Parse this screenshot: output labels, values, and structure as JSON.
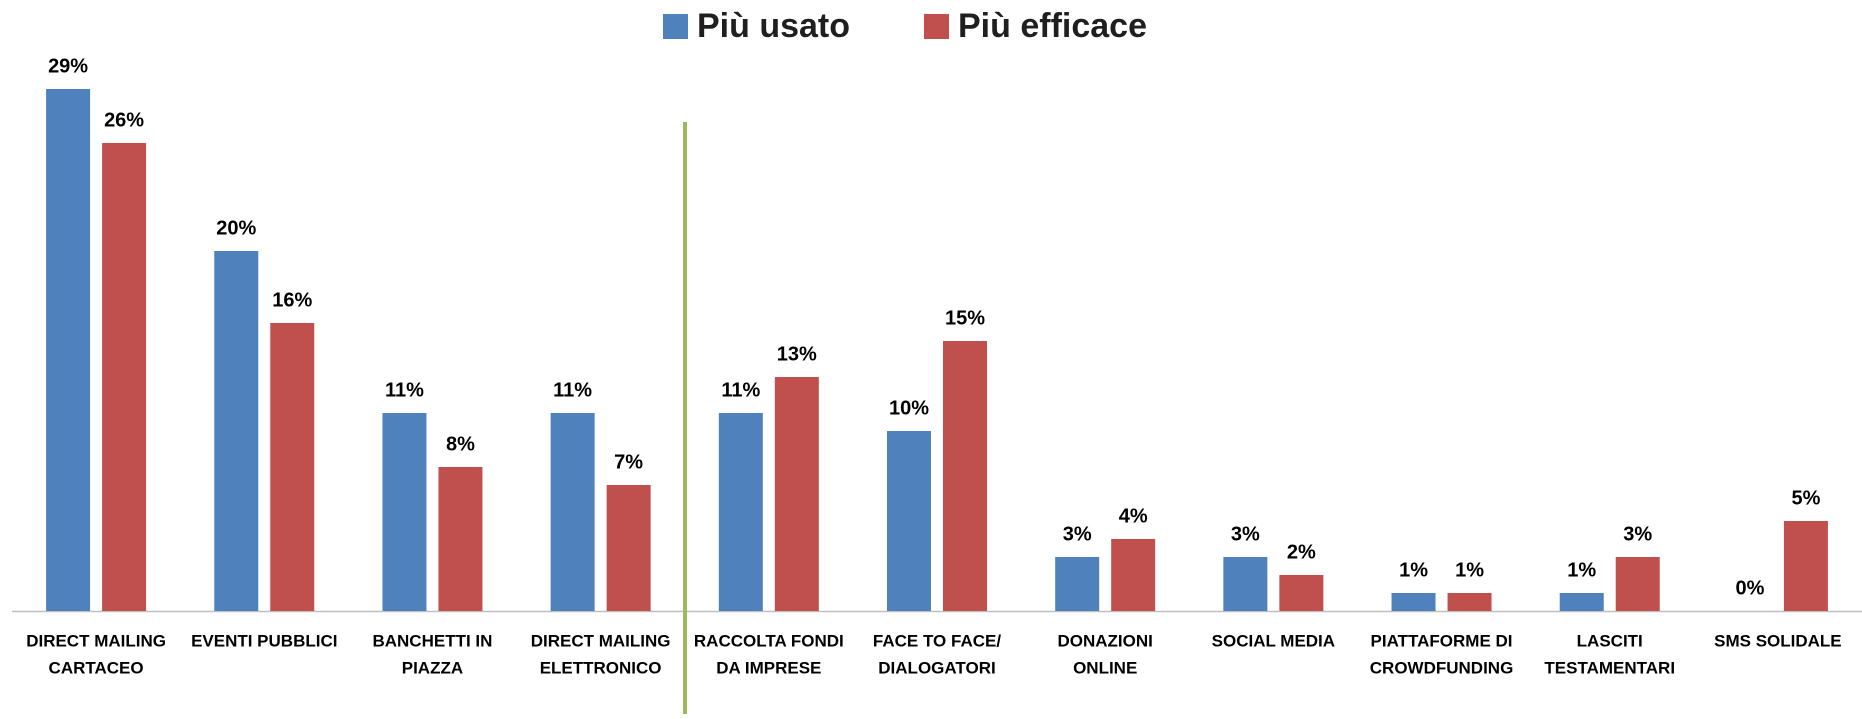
{
  "chart_data": {
    "type": "bar",
    "categories": [
      [
        "DIRECT MAILING",
        "CARTACEO"
      ],
      [
        "EVENTI PUBBLICI"
      ],
      [
        "BANCHETTI IN",
        "PIAZZA"
      ],
      [
        "DIRECT MAILING",
        "ELETTRONICO"
      ],
      [
        "RACCOLTA FONDI",
        "DA IMPRESE"
      ],
      [
        "FACE TO FACE/",
        "DIALOGATORI"
      ],
      [
        "DONAZIONI",
        "ONLINE"
      ],
      [
        "SOCIAL MEDIA"
      ],
      [
        "PIATTAFORME DI",
        "CROWDFUNDING"
      ],
      [
        "LASCITI",
        "TESTAMENTARI"
      ],
      [
        "SMS SOLIDALE"
      ]
    ],
    "series": [
      {
        "name": "Più usato",
        "color": "#4f81bd",
        "values": [
          29,
          20,
          11,
          11,
          11,
          10,
          3,
          3,
          1,
          1,
          0
        ],
        "value_labels": [
          "29%",
          "20%",
          "11%",
          "11%",
          "11%",
          "10%",
          "3%",
          "3%",
          "1%",
          "1%",
          "0%"
        ]
      },
      {
        "name": "Più efficace",
        "color": "#c0504d",
        "values": [
          26,
          16,
          8,
          7,
          13,
          15,
          4,
          2,
          1,
          3,
          5
        ],
        "value_labels": [
          "26%",
          "16%",
          "8%",
          "7%",
          "13%",
          "15%",
          "4%",
          "2%",
          "1%",
          "3%",
          "5%"
        ]
      }
    ],
    "legend": "top"
  }
}
